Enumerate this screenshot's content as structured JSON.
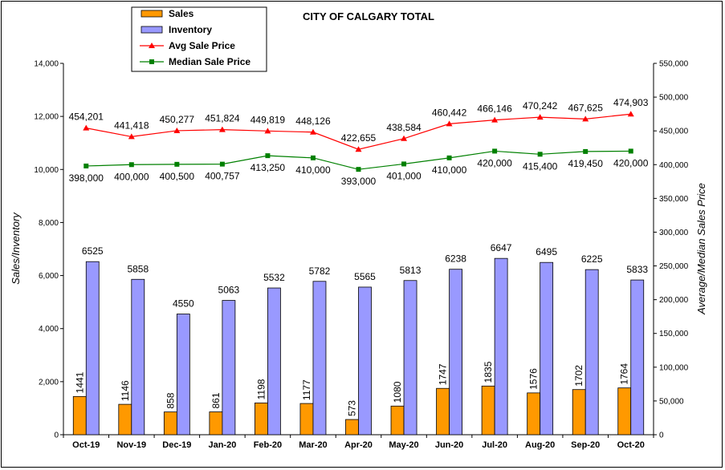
{
  "chart_data": {
    "type": "bar",
    "title": "CITY OF CALGARY  TOTAL",
    "ylabel": "Sales/Inventory",
    "y2label": "Average/Median Sales Price",
    "ylim": [
      0,
      14000
    ],
    "y2lim": [
      0,
      550000
    ],
    "y_ticks": [
      "0",
      "2,000",
      "4,000",
      "6,000",
      "8,000",
      "10,000",
      "12,000",
      "14,000"
    ],
    "y2_ticks": [
      "0",
      "50,000",
      "100,000",
      "150,000",
      "200,000",
      "250,000",
      "300,000",
      "350,000",
      "400,000",
      "450,000",
      "500,000",
      "550,000"
    ],
    "categories": [
      "Oct-19",
      "Nov-19",
      "Dec-19",
      "Jan-20",
      "Feb-20",
      "Mar-20",
      "Apr-20",
      "May-20",
      "Jun-20",
      "Jul-20",
      "Aug-20",
      "Sep-20",
      "Oct-20"
    ],
    "legend_position": "top-left",
    "grid": false,
    "series": [
      {
        "name": "Sales",
        "kind": "bar",
        "axis": "left",
        "color": "#ff9900",
        "values": [
          1441,
          1146,
          858,
          861,
          1198,
          1177,
          573,
          1080,
          1747,
          1835,
          1576,
          1702,
          1764
        ],
        "labels": [
          "1441",
          "1146",
          "858",
          "861",
          "1198",
          "1177",
          "573",
          "1080",
          "1747",
          "1835",
          "1576",
          "1702",
          "1764"
        ]
      },
      {
        "name": "Inventory",
        "kind": "bar",
        "axis": "left",
        "color": "#9999ff",
        "values": [
          6525,
          5858,
          4550,
          5063,
          5532,
          5782,
          5565,
          5813,
          6238,
          6647,
          6495,
          6225,
          5833
        ],
        "labels": [
          "6525",
          "5858",
          "4550",
          "5063",
          "5532",
          "5782",
          "5565",
          "5813",
          "6238",
          "6647",
          "6495",
          "6225",
          "5833"
        ]
      },
      {
        "name": "Avg Sale Price",
        "kind": "line",
        "axis": "right",
        "color": "#ff0000",
        "marker": "triangle",
        "values": [
          454201,
          441418,
          450277,
          451824,
          449819,
          448126,
          422655,
          438584,
          460442,
          466146,
          470242,
          467625,
          474903
        ],
        "labels": [
          "454,201",
          "441,418",
          "450,277",
          "451,824",
          "449,819",
          "448,126",
          "422,655",
          "438,584",
          "460,442",
          "466,146",
          "470,242",
          "467,625",
          "474,903"
        ]
      },
      {
        "name": "Median Sale Price",
        "kind": "line",
        "axis": "right",
        "color": "#008000",
        "marker": "square",
        "values": [
          398000,
          400000,
          400500,
          400757,
          413250,
          410000,
          393000,
          401000,
          410000,
          420000,
          415400,
          419450,
          420000
        ],
        "labels": [
          "398,000",
          "400,000",
          "400,500",
          "400,757",
          "413,250",
          "410,000",
          "393,000",
          "401,000",
          "410,000",
          "420,000",
          "415,400",
          "419,450",
          "420,000"
        ]
      }
    ]
  }
}
